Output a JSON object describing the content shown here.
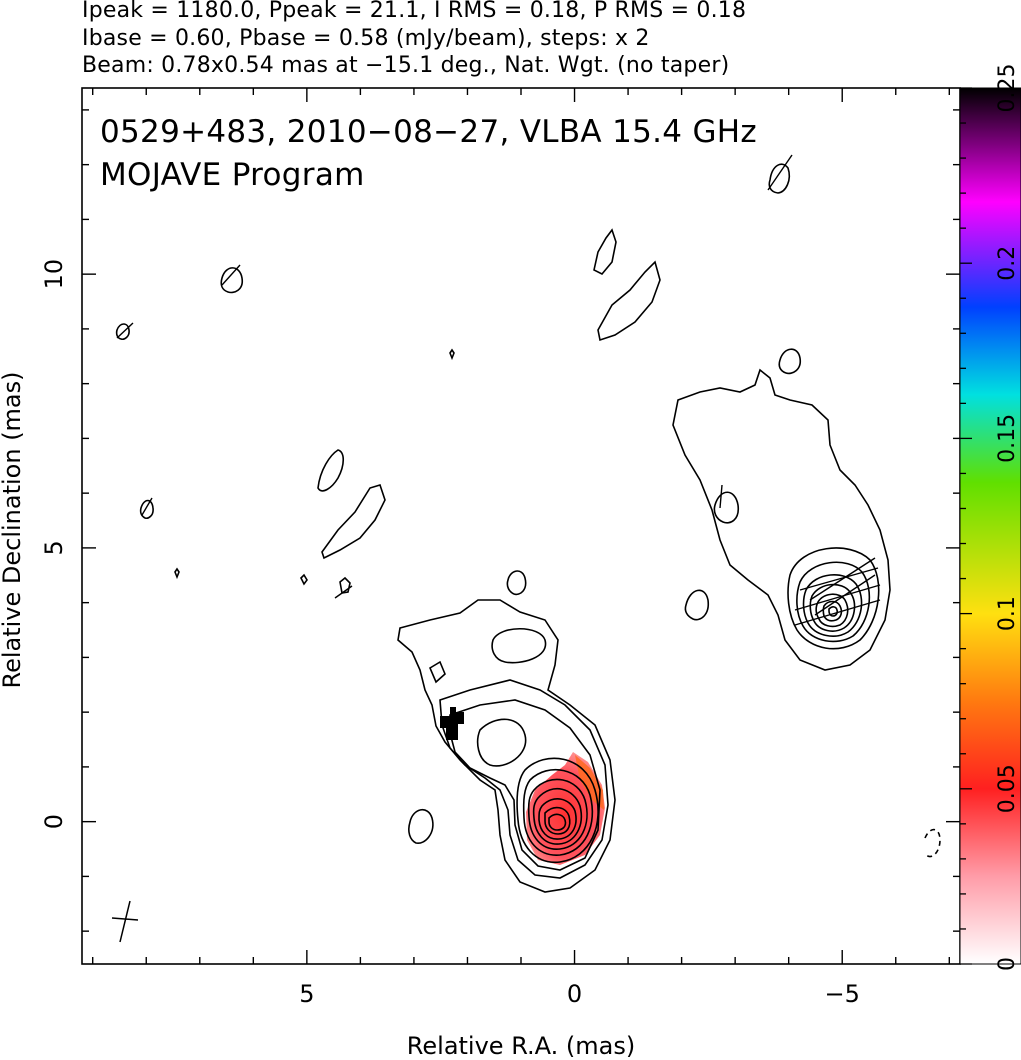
{
  "header": {
    "line1": "Ipeak = 1180.0, Ppeak = 21.1, I RMS = 0.18, P RMS = 0.18",
    "line2": "Ibase = 0.60, Pbase = 0.58 (mJy/beam), steps: x 2",
    "line3": "Beam: 0.78x0.54 mas at −15.1 deg., Nat. Wgt. (no taper)"
  },
  "plot": {
    "title": "0529+483, 2010−08−27, VLBA 15.4 GHz",
    "subtitle": "MOJAVE Program",
    "xlabel": "Relative R.A. (mas)",
    "ylabel": "Relative Declination (mas)",
    "xticks": [
      {
        "v": 5,
        "label": "5"
      },
      {
        "v": 0,
        "label": "0"
      },
      {
        "v": -5,
        "label": "−5"
      }
    ],
    "yticks": [
      {
        "v": 0,
        "label": "0"
      },
      {
        "v": 5,
        "label": "5"
      },
      {
        "v": 10,
        "label": "10"
      }
    ],
    "xlim": [
      9.2,
      -7.2
    ],
    "ylim": [
      -2.6,
      13.4
    ]
  },
  "colorbar": {
    "ticks": [
      {
        "v": 0,
        "label": "0"
      },
      {
        "v": 0.05,
        "label": "0.05"
      },
      {
        "v": 0.1,
        "label": "0.1"
      },
      {
        "v": 0.15,
        "label": "0.15"
      },
      {
        "v": 0.2,
        "label": "0.2"
      },
      {
        "v": 0.25,
        "label": "0.25"
      }
    ],
    "range": [
      0,
      0.25
    ],
    "colors": [
      "#ffffff",
      "#ff9ca8",
      "#ff2020",
      "#ff7a10",
      "#ffe010",
      "#60e000",
      "#00e0e0",
      "#0040ff",
      "#ff00ff",
      "#000000"
    ]
  }
}
